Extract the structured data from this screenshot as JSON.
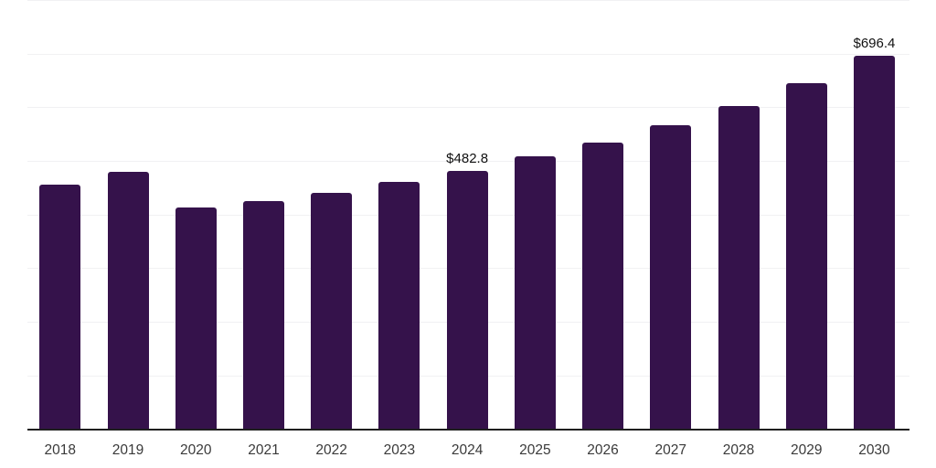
{
  "chart_data": {
    "type": "bar",
    "title": "",
    "xlabel": "",
    "ylabel": "",
    "categories": [
      "2018",
      "2019",
      "2020",
      "2021",
      "2022",
      "2023",
      "2024",
      "2025",
      "2026",
      "2027",
      "2028",
      "2029",
      "2030"
    ],
    "values": [
      456.0,
      479.9,
      413.5,
      426.6,
      441.9,
      461.8,
      482.8,
      508.9,
      535.7,
      566.8,
      603.8,
      646.3,
      696.4
    ],
    "data_labels": [
      "",
      "",
      "",
      "",
      "",
      "",
      "$482.8",
      "",
      "",
      "",
      "",
      "",
      "$696.4"
    ],
    "ylim": [
      0,
      800
    ],
    "gridline_interval": 100,
    "grid": "horizontal-only",
    "legend": "none",
    "y_tick_labels": "none",
    "bar_color": "#35124B",
    "gridline_color": "#f1f1f3",
    "axis_line_color": "#1f1f1f",
    "label_color": "#111111",
    "tick_label_color": "#3a3a3a",
    "currency_prefix": "$"
  }
}
